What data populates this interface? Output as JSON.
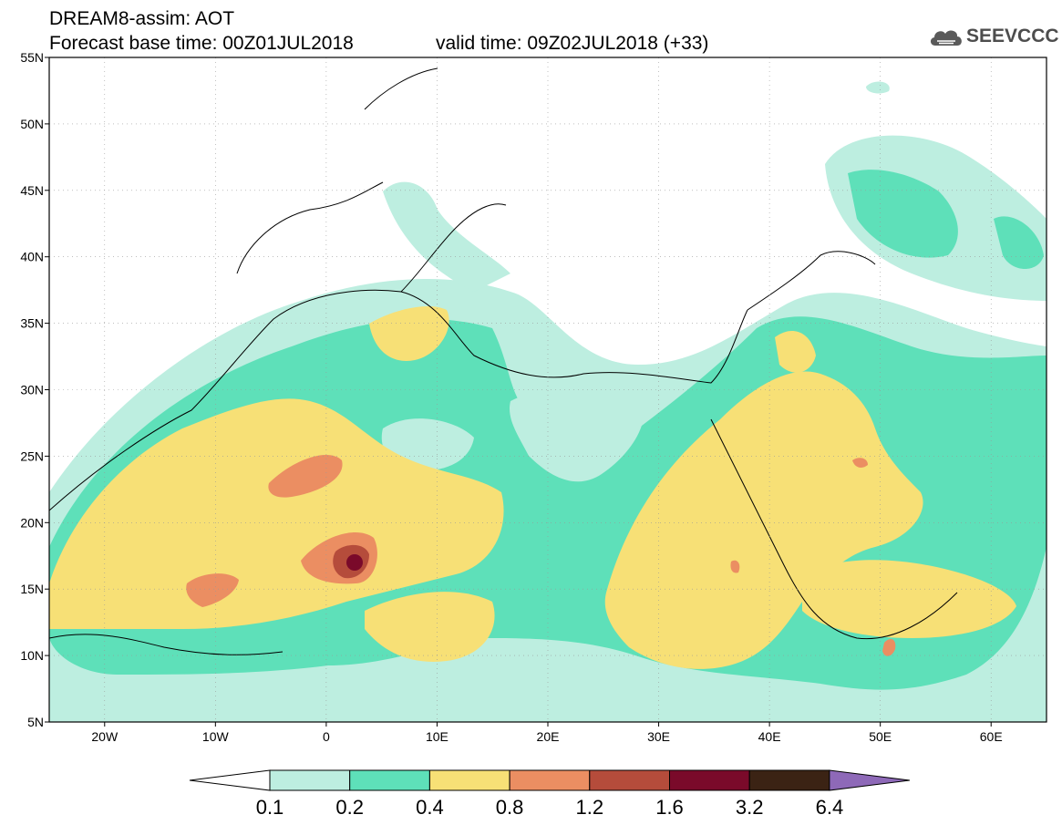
{
  "header": {
    "title_line1": "DREAM8-assim: AOT",
    "title_line2": "Forecast base time: 00Z01JUL2018",
    "valid_time": "valid time: 09Z02JUL2018 (+33)",
    "logo_text": "SEEVCCC",
    "logo_icon": "cloud-icon"
  },
  "map": {
    "lon_range": [
      -25,
      65
    ],
    "lat_range": [
      5,
      55
    ],
    "lat_ticks": [
      "5N",
      "10N",
      "15N",
      "20N",
      "25N",
      "30N",
      "35N",
      "40N",
      "45N",
      "50N",
      "55N"
    ],
    "lon_ticks": [
      "20W",
      "10W",
      "0",
      "10E",
      "20E",
      "30E",
      "40E",
      "50E",
      "60E"
    ],
    "grid": true
  },
  "colorbar": {
    "levels": [
      "0.1",
      "0.2",
      "0.4",
      "0.8",
      "1.2",
      "1.6",
      "3.2",
      "6.4"
    ],
    "colors": [
      "#ffffff",
      "#bdeee0",
      "#5ee0b9",
      "#f7e076",
      "#eb8e62",
      "#b54c3b",
      "#7a0a2a",
      "#3b2314",
      "#8e69b8"
    ]
  }
}
